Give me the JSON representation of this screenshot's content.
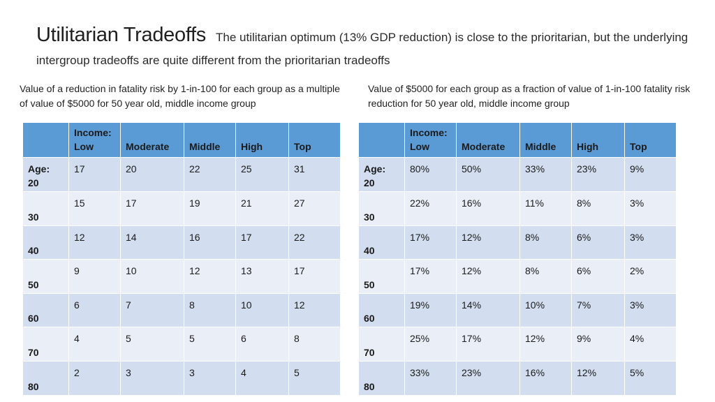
{
  "title": "Utilitarian Tradeoffs",
  "subtitle": "The utilitarian optimum (13% GDP reduction) is close to the prioritarian, but the underlying intergroup tradeoffs are quite different from the prioritarian tradeoffs",
  "left_table": {
    "caption": "Value of a reduction in fatality risk by 1-in-100 for each group as a multiple of value of $5000 for 50 year old, middle income group",
    "columns": [
      "",
      "Income: Low",
      "Moderate",
      "Middle",
      "High",
      "Top"
    ],
    "rows": [
      {
        "label": "Age: 20",
        "values": [
          "17",
          "20",
          "22",
          "25",
          "31"
        ]
      },
      {
        "label": "30",
        "values": [
          "15",
          "17",
          "19",
          "21",
          "27"
        ]
      },
      {
        "label": "40",
        "values": [
          "12",
          "14",
          "16",
          "17",
          "22"
        ]
      },
      {
        "label": "50",
        "values": [
          "9",
          "10",
          "12",
          "13",
          "17"
        ]
      },
      {
        "label": "60",
        "values": [
          "6",
          "7",
          "8",
          "10",
          "12"
        ]
      },
      {
        "label": "70",
        "values": [
          "4",
          "5",
          "5",
          "6",
          "8"
        ]
      },
      {
        "label": "80",
        "values": [
          "2",
          "3",
          "3",
          "4",
          "5"
        ]
      }
    ]
  },
  "right_table": {
    "caption": "Value of $5000 for each group as a fraction of value of 1-in-100 fatality risk reduction for 50 year old, middle income group",
    "columns": [
      "",
      "Income: Low",
      "Moderate",
      "Middle",
      "High",
      "Top"
    ],
    "rows": [
      {
        "label": "Age: 20",
        "values": [
          "80%",
          "50%",
          "33%",
          "23%",
          "9%"
        ]
      },
      {
        "label": "30",
        "values": [
          "22%",
          "16%",
          "11%",
          "8%",
          "3%"
        ]
      },
      {
        "label": "40",
        "values": [
          "17%",
          "12%",
          "8%",
          "6%",
          "3%"
        ]
      },
      {
        "label": "50",
        "values": [
          "17%",
          "12%",
          "8%",
          "6%",
          "2%"
        ]
      },
      {
        "label": "60",
        "values": [
          "19%",
          "14%",
          "10%",
          "7%",
          "3%"
        ]
      },
      {
        "label": "70",
        "values": [
          "25%",
          "17%",
          "12%",
          "9%",
          "4%"
        ]
      },
      {
        "label": "80",
        "values": [
          "33%",
          "23%",
          "16%",
          "12%",
          "5%"
        ]
      }
    ]
  },
  "colors": {
    "header": "#5b9bd5",
    "row_dark": "#d2deef",
    "row_light": "#eaeff7"
  }
}
